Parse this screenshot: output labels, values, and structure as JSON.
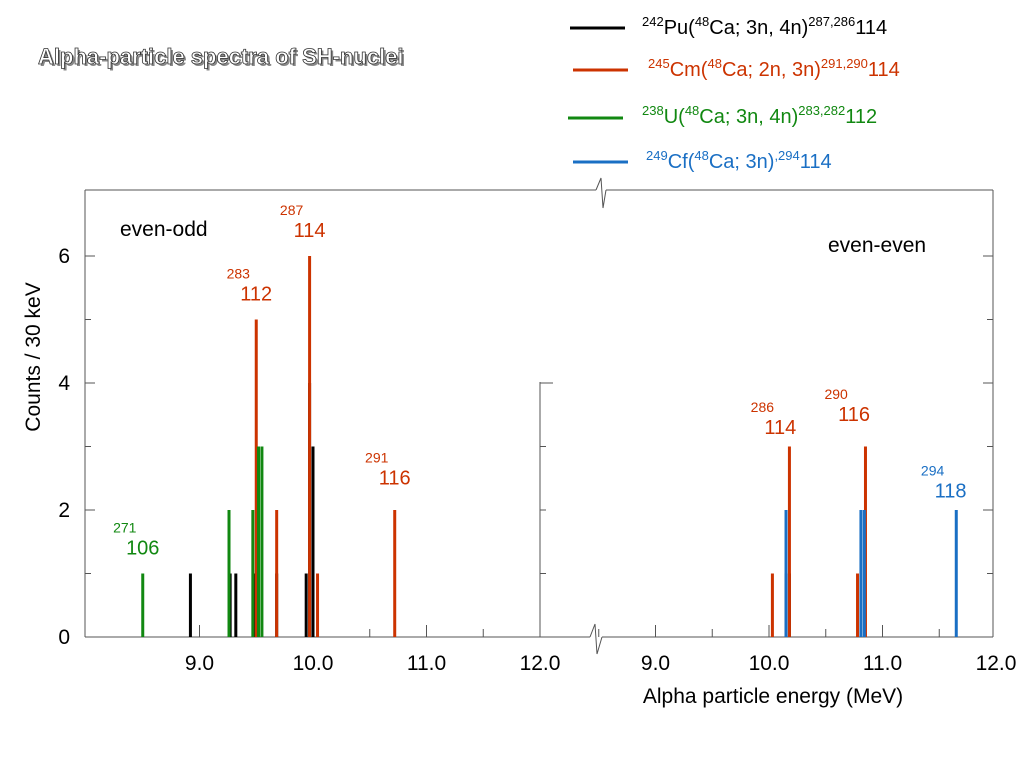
{
  "page": {
    "title": "Alpha-particle spectra of SH-nuclei"
  },
  "legend": [
    {
      "color": "#000000",
      "target_mass": "242",
      "target": "Pu(",
      "beam_mass": "48",
      "reaction": "Ca; 3n, 4n)",
      "product_mass": "287,286",
      "product": "114"
    },
    {
      "color": "#cc3300",
      "target_mass": "245",
      "target": "Cm(",
      "beam_mass": "48",
      "reaction": "Ca; 2n, 3n)",
      "product_mass": "291,290",
      "product": "114"
    },
    {
      "color": "#118811",
      "target_mass": "238",
      "target": "U(",
      "beam_mass": "48",
      "reaction": "Ca; 3n, 4n)",
      "product_mass": "283,282",
      "product": "112"
    },
    {
      "color": "#1a6fc4",
      "target_mass": "249",
      "target": "Cf(",
      "beam_mass": "48",
      "reaction": "Ca; 3n)",
      "product_mass": ",294",
      "product": "114"
    }
  ],
  "chart_data": {
    "type": "bar",
    "xlabel": "Alpha particle energy  (MeV)",
    "ylabel": "Counts / 30 keV",
    "ylim": [
      0,
      7
    ],
    "yticks": [
      "0",
      "2",
      "4",
      "6"
    ],
    "panels": [
      {
        "name": "even-odd",
        "label": "even-odd",
        "xlim": [
          8.0,
          12.0
        ],
        "xticks": [
          "9.0",
          "10.0",
          "11.0",
          "12.0"
        ],
        "series": [
          {
            "name": "Pu",
            "color": "#000000",
            "bars": [
              [
                8.92,
                1
              ],
              [
                9.27,
                1
              ],
              [
                9.32,
                1
              ],
              [
                9.48,
                1
              ],
              [
                9.68,
                1
              ],
              [
                9.94,
                1
              ],
              [
                9.97,
                4
              ],
              [
                10.0,
                3
              ]
            ]
          },
          {
            "name": "Cm",
            "color": "#cc3300",
            "bars": [
              [
                9.5,
                5
              ],
              [
                9.68,
                2
              ],
              [
                9.97,
                6
              ],
              [
                10.04,
                1
              ],
              [
                10.72,
                2
              ]
            ]
          },
          {
            "name": "U",
            "color": "#118811",
            "bars": [
              [
                8.5,
                1
              ],
              [
                9.26,
                2
              ],
              [
                9.47,
                2
              ],
              [
                9.52,
                3
              ],
              [
                9.55,
                3
              ]
            ]
          }
        ],
        "annotations": [
          {
            "mass": "271",
            "element": "106",
            "color": "#118811",
            "x": 8.5,
            "y": 1.3
          },
          {
            "mass": "283",
            "element": "112",
            "color": "#cc3300",
            "x": 9.5,
            "y": 5.3
          },
          {
            "mass": "287",
            "element": "114",
            "color": "#cc3300",
            "x": 9.97,
            "y": 6.3
          },
          {
            "mass": "291",
            "element": "116",
            "color": "#cc3300",
            "x": 10.72,
            "y": 2.4
          }
        ]
      },
      {
        "name": "even-even",
        "label": "even-even",
        "xlim": [
          8.0,
          12.0
        ],
        "xticks": [
          "9.0",
          "10.0",
          "11.0",
          "12.0"
        ],
        "series": [
          {
            "name": "Pu",
            "color": "#000000",
            "bars": [
              [
                10.15,
                1
              ],
              [
                10.18,
                1
              ]
            ]
          },
          {
            "name": "Cm",
            "color": "#cc3300",
            "bars": [
              [
                10.03,
                1
              ],
              [
                10.18,
                3
              ],
              [
                10.78,
                1
              ],
              [
                10.85,
                3
              ]
            ]
          },
          {
            "name": "Cf",
            "color": "#1a6fc4",
            "bars": [
              [
                10.15,
                2
              ],
              [
                10.81,
                2
              ],
              [
                10.84,
                2
              ],
              [
                11.65,
                2
              ]
            ]
          }
        ],
        "annotations": [
          {
            "mass": "286",
            "element": "114",
            "color": "#cc3300",
            "x": 10.1,
            "y": 3.2
          },
          {
            "mass": "290",
            "element": "116",
            "color": "#cc3300",
            "x": 10.75,
            "y": 3.4
          },
          {
            "mass": "294",
            "element": "118",
            "color": "#1a6fc4",
            "x": 11.6,
            "y": 2.2
          }
        ]
      }
    ]
  }
}
